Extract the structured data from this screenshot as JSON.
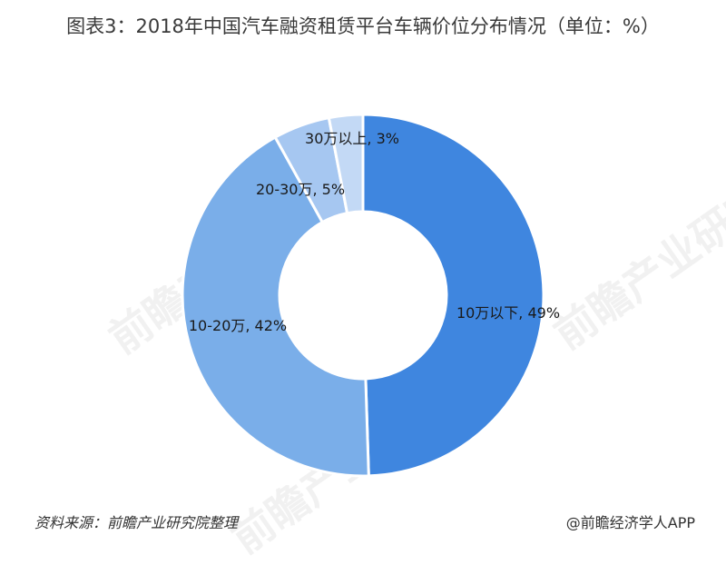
{
  "title": "图表3：2018年中国汽车融资租赁平台车辆价位分布情况（单位：%）",
  "footer": {
    "source": "资料来源：前瞻产业研究院整理",
    "credit": "@前瞻经济学人APP"
  },
  "watermark": {
    "text": "前瞻产业研究院"
  },
  "chart_data": {
    "type": "pie",
    "donut": true,
    "title": "图表3：2018年中国汽车融资租赁平台车辆价位分布情况（单位：%）",
    "slices": [
      {
        "label": "10万以下",
        "value": 49,
        "display": "10万以下, 49%",
        "color": "#3f86df"
      },
      {
        "label": "10-20万",
        "value": 42,
        "display": "10-20万, 42%",
        "color": "#7aaee9"
      },
      {
        "label": "20-30万",
        "value": 5,
        "display": "20-30万, 5%",
        "color": "#a6c7f1"
      },
      {
        "label": "30万以上",
        "value": 3,
        "display": "30万以上, 3%",
        "color": "#c3d9f5"
      }
    ],
    "legend": "none"
  }
}
